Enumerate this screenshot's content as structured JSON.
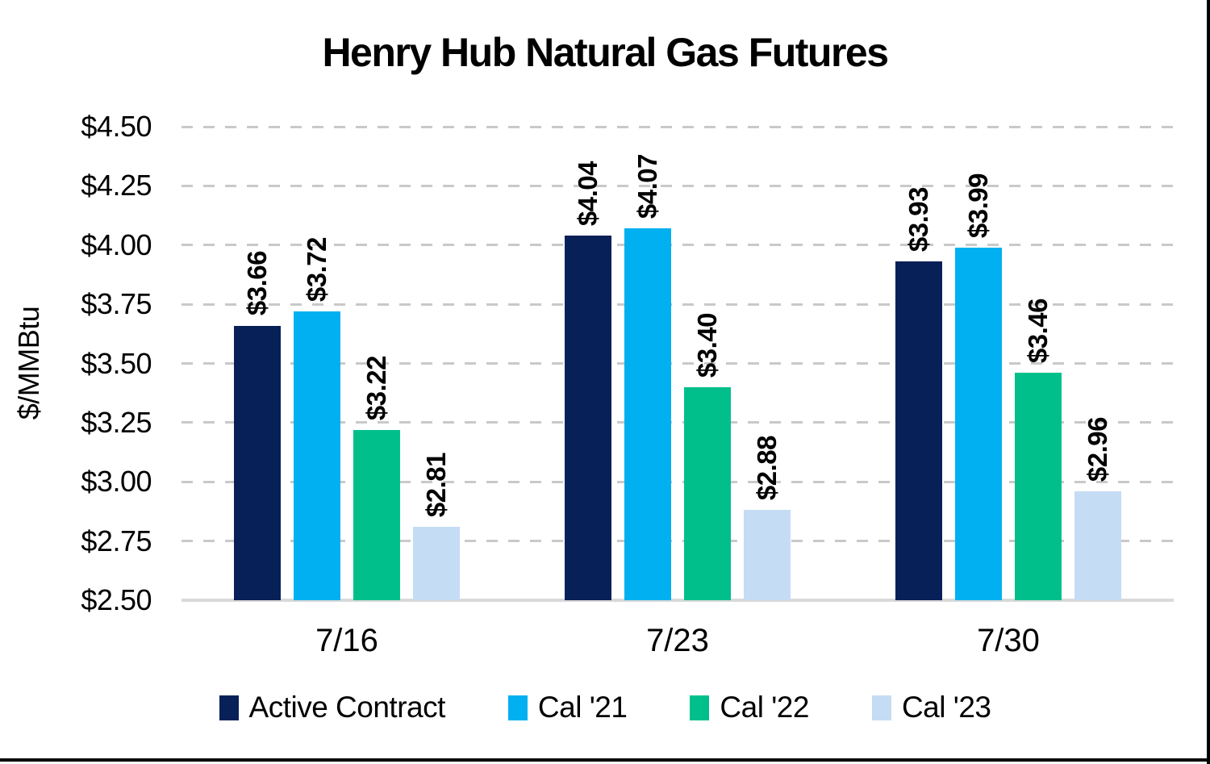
{
  "chart_data": {
    "type": "bar",
    "title": "Henry Hub Natural Gas Futures",
    "ylabel": "$/MMBtu",
    "xlabel": "",
    "ylim": [
      2.5,
      4.5
    ],
    "ytick_step": 0.25,
    "ytick_labels": [
      "$4.50",
      "$4.25",
      "$4.00",
      "$3.75",
      "$3.50",
      "$3.25",
      "$3.00",
      "$2.75",
      "$2.50"
    ],
    "grid": "horizontal-dashed",
    "legend_position": "bottom",
    "categories": [
      "7/16",
      "7/23",
      "7/30"
    ],
    "series": [
      {
        "name": "Active Contract",
        "color": "#082058",
        "values": [
          3.66,
          4.04,
          3.93
        ],
        "data_labels": [
          "$3.66",
          "$4.04",
          "$3.93"
        ]
      },
      {
        "name": "Cal '21",
        "color": "#00b0f0",
        "values": [
          3.72,
          4.07,
          3.99
        ],
        "data_labels": [
          "$3.72",
          "$4.07",
          "$3.99"
        ]
      },
      {
        "name": "Cal '22",
        "color": "#00bf8b",
        "values": [
          3.22,
          3.4,
          3.46
        ],
        "data_labels": [
          "$3.22",
          "$3.40",
          "$3.46"
        ]
      },
      {
        "name": "Cal '23",
        "color": "#c5dcf5",
        "values": [
          2.81,
          2.88,
          2.96
        ],
        "data_labels": [
          "$2.81",
          "$2.88",
          "$2.96"
        ]
      }
    ]
  }
}
